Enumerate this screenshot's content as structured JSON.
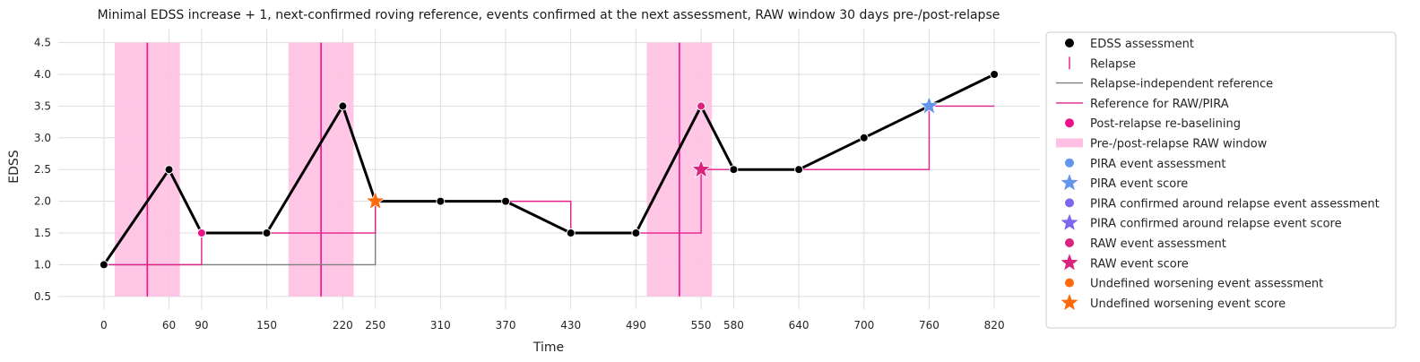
{
  "chart_data": {
    "type": "line",
    "title": "Minimal EDSS increase + 1, next-confirmed roving reference, events confirmed at the next assessment, RAW window 30 days pre-/post-relapse",
    "xlabel": "Time",
    "ylabel": "EDSS",
    "xlim": [
      -42,
      862
    ],
    "ylim": [
      0.3,
      4.72
    ],
    "x_ticks": [
      0,
      60,
      90,
      150,
      220,
      250,
      310,
      370,
      430,
      490,
      550,
      580,
      640,
      700,
      760,
      820
    ],
    "y_ticks": [
      "0.5",
      "1.0",
      "1.5",
      "2.0",
      "2.5",
      "3.0",
      "3.5",
      "4.0",
      "4.5"
    ],
    "grid": true,
    "legend_position": "outside-right",
    "assessments": {
      "name": "EDSS assessment",
      "x": [
        0,
        60,
        90,
        150,
        220,
        250,
        310,
        370,
        430,
        490,
        550,
        580,
        640,
        700,
        760,
        820
      ],
      "y": [
        1.0,
        2.5,
        1.5,
        1.5,
        3.5,
        2.0,
        2.0,
        2.0,
        1.5,
        1.5,
        3.5,
        2.5,
        2.5,
        3.0,
        3.5,
        4.0
      ]
    },
    "relapses": {
      "name": "Relapse",
      "x": [
        40,
        200,
        530
      ]
    },
    "raw_windows": {
      "name": "Pre-/post-relapse RAW window",
      "ranges": [
        [
          10,
          70
        ],
        [
          170,
          230
        ],
        [
          500,
          560
        ]
      ]
    },
    "relapse_independent_reference": {
      "name": "Relapse-independent reference",
      "x": [
        0,
        90,
        90,
        250,
        250,
        370,
        370,
        430,
        430,
        550,
        550,
        760,
        760,
        820
      ],
      "y": [
        1.0,
        1.0,
        1.5,
        1.5,
        2.0,
        2.0,
        2.0,
        2.0,
        1.5,
        1.5,
        2.5,
        2.5,
        3.5,
        3.5
      ]
    },
    "raw_pira_reference": {
      "name": "Reference for RAW/PIRA",
      "x": [
        0,
        90,
        90,
        250,
        250,
        370,
        370,
        430,
        430,
        550,
        550,
        760,
        760,
        820
      ],
      "y": [
        1.0,
        1.0,
        1.5,
        1.5,
        2.0,
        2.0,
        2.0,
        2.0,
        1.5,
        1.5,
        2.5,
        2.5,
        3.5,
        3.5
      ]
    },
    "relapse_independent_reference_early": {
      "x": [
        0,
        250,
        250
      ],
      "y": [
        1.0,
        1.0,
        2.0
      ]
    },
    "post_relapse_rebaselining": {
      "name": "Post-relapse re-baselining",
      "x": [
        90,
        550
      ],
      "y": [
        1.5,
        3.5
      ]
    },
    "events": [
      {
        "type": "RAW",
        "x": 550,
        "y": 2.5,
        "assessment_x": 550,
        "assessment_y": 3.5
      },
      {
        "type": "PIRA",
        "x": 760,
        "y": 3.5,
        "assessment_x": 760,
        "assessment_y": 3.5
      },
      {
        "type": "Undefined worsening",
        "x": 250,
        "y": 2.0,
        "assessment_x": 250,
        "assessment_y": 2.0
      }
    ],
    "colors": {
      "edss": "#000000",
      "relapse": "#ee1289",
      "reference_gray": "#808080",
      "reference_pink": "#e0218a",
      "rebaseline": "#ee1289",
      "window": "#ffc0e3",
      "pira": "#6495ed",
      "pira_relapse": "#7b68ee",
      "raw": "#d9237f",
      "undefined": "#ff6a0d",
      "grid": "#dddddd"
    },
    "legend": [
      {
        "label": "EDSS assessment",
        "symbol": "dot",
        "color": "#000000"
      },
      {
        "label": "Relapse",
        "symbol": "vline",
        "color": "#ee1289"
      },
      {
        "label": "Relapse-independent reference",
        "symbol": "line",
        "color": "#808080"
      },
      {
        "label": "Reference for RAW/PIRA",
        "symbol": "line",
        "color": "#e0218a"
      },
      {
        "label": "Post-relapse re-baselining",
        "symbol": "dot",
        "color": "#ee1289"
      },
      {
        "label": "Pre-/post-relapse RAW window",
        "symbol": "rect",
        "color": "#ffc0e3"
      },
      {
        "label": "PIRA event assessment",
        "symbol": "dot",
        "color": "#6495ed"
      },
      {
        "label": "PIRA event score",
        "symbol": "star",
        "color": "#6495ed"
      },
      {
        "label": "PIRA confirmed around relapse event assessment",
        "symbol": "dot",
        "color": "#7b68ee"
      },
      {
        "label": "PIRA confirmed around relapse event score",
        "symbol": "star",
        "color": "#7b68ee"
      },
      {
        "label": "RAW event assessment",
        "symbol": "dot",
        "color": "#d9237f"
      },
      {
        "label": "RAW event score",
        "symbol": "star",
        "color": "#d9237f"
      },
      {
        "label": "Undefined worsening event assessment",
        "symbol": "dot",
        "color": "#ff6a0d"
      },
      {
        "label": "Undefined worsening event score",
        "symbol": "star",
        "color": "#ff6a0d"
      }
    ]
  }
}
